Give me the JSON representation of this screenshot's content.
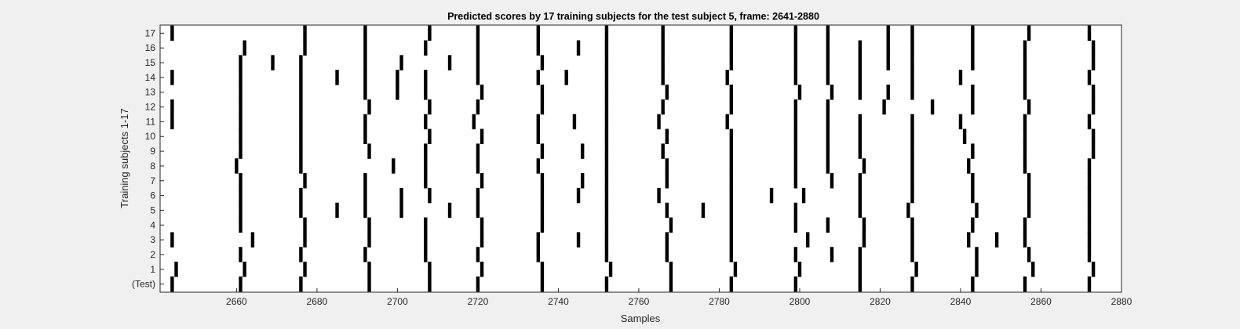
{
  "chart_data": {
    "type": "raster",
    "title": "Predicted scores by 17 training subjects for the test subject 5, frame: 2641-2880",
    "xlabel": "Samples",
    "ylabel": "Training subjects 1-17",
    "xlim": [
      2641,
      2880
    ],
    "xticks": [
      2660,
      2680,
      2700,
      2720,
      2740,
      2760,
      2780,
      2800,
      2820,
      2840,
      2860,
      2880
    ],
    "yticklabels": [
      "(Test)",
      "1",
      "2",
      "3",
      "4",
      "5",
      "6",
      "7",
      "8",
      "9",
      "10",
      "11",
      "12",
      "13",
      "14",
      "15",
      "16",
      "17"
    ],
    "grid": false,
    "colors": {
      "spike": "#000000",
      "background": "#ffffff",
      "figure": "#f0f0f0"
    },
    "series": [
      {
        "name": "(Test)",
        "x": [
          2644,
          2661,
          2676,
          2693,
          2708,
          2720,
          2736,
          2752,
          2768,
          2783,
          2799,
          2815,
          2828,
          2843,
          2856,
          2872
        ]
      },
      {
        "name": "1",
        "x": [
          2645,
          2662,
          2677,
          2693,
          2708,
          2721,
          2736,
          2753,
          2768,
          2784,
          2800,
          2815,
          2829,
          2844,
          2858,
          2873
        ]
      },
      {
        "name": "2",
        "x": [
          2661,
          2676,
          2692,
          2707,
          2720,
          2735,
          2752,
          2767,
          2783,
          2799,
          2808,
          2815,
          2828,
          2844,
          2857,
          2872
        ]
      },
      {
        "name": "3",
        "x": [
          2644,
          2664,
          2677,
          2693,
          2707,
          2721,
          2735,
          2745,
          2752,
          2767,
          2783,
          2802,
          2816,
          2828,
          2842,
          2849,
          2856,
          2872
        ]
      },
      {
        "name": "4",
        "x": [
          2661,
          2677,
          2693,
          2707,
          2721,
          2736,
          2752,
          2768,
          2783,
          2799,
          2807,
          2816,
          2828,
          2843,
          2856,
          2872
        ]
      },
      {
        "name": "5",
        "x": [
          2661,
          2676,
          2685,
          2692,
          2701,
          2713,
          2720,
          2736,
          2752,
          2767,
          2776,
          2783,
          2799,
          2815,
          2827,
          2844,
          2857,
          2872
        ]
      },
      {
        "name": "6",
        "x": [
          2661,
          2676,
          2692,
          2701,
          2708,
          2720,
          2736,
          2745,
          2752,
          2765,
          2783,
          2793,
          2801,
          2815,
          2828,
          2843,
          2857,
          2872
        ]
      },
      {
        "name": "7",
        "x": [
          2661,
          2677,
          2692,
          2707,
          2721,
          2736,
          2746,
          2752,
          2767,
          2783,
          2799,
          2808,
          2815,
          2828,
          2843,
          2857,
          2872
        ]
      },
      {
        "name": "8",
        "x": [
          2660,
          2676,
          2699,
          2707,
          2720,
          2735,
          2752,
          2767,
          2783,
          2799,
          2807,
          2816,
          2828,
          2842,
          2856,
          2872
        ]
      },
      {
        "name": "9",
        "x": [
          2661,
          2676,
          2693,
          2707,
          2720,
          2736,
          2746,
          2752,
          2766,
          2783,
          2799,
          2807,
          2815,
          2828,
          2843,
          2856,
          2873
        ]
      },
      {
        "name": "10",
        "x": [
          2661,
          2676,
          2692,
          2708,
          2721,
          2735,
          2752,
          2767,
          2783,
          2799,
          2807,
          2815,
          2828,
          2841,
          2856,
          2873
        ]
      },
      {
        "name": "11",
        "x": [
          2644,
          2661,
          2676,
          2692,
          2707,
          2719,
          2735,
          2744,
          2752,
          2765,
          2782,
          2799,
          2807,
          2815,
          2828,
          2840,
          2856,
          2872
        ]
      },
      {
        "name": "12",
        "x": [
          2644,
          2661,
          2676,
          2693,
          2708,
          2720,
          2736,
          2752,
          2766,
          2783,
          2799,
          2807,
          2821,
          2833,
          2843,
          2857,
          2873
        ]
      },
      {
        "name": "13",
        "x": [
          2661,
          2676,
          2692,
          2700,
          2707,
          2721,
          2736,
          2752,
          2767,
          2783,
          2800,
          2808,
          2815,
          2822,
          2828,
          2843,
          2856,
          2873
        ]
      },
      {
        "name": "14",
        "x": [
          2644,
          2661,
          2676,
          2685,
          2692,
          2700,
          2707,
          2720,
          2735,
          2742,
          2752,
          2766,
          2782,
          2799,
          2807,
          2815,
          2828,
          2840,
          2856,
          2872
        ]
      },
      {
        "name": "15",
        "x": [
          2661,
          2669,
          2676,
          2692,
          2701,
          2713,
          2720,
          2736,
          2752,
          2766,
          2783,
          2799,
          2807,
          2815,
          2822,
          2828,
          2843,
          2856,
          2873
        ]
      },
      {
        "name": "16",
        "x": [
          2662,
          2677,
          2692,
          2707,
          2720,
          2735,
          2745,
          2752,
          2766,
          2783,
          2799,
          2807,
          2815,
          2822,
          2828,
          2843,
          2856,
          2873
        ]
      },
      {
        "name": "17",
        "x": [
          2644,
          2677,
          2692,
          2708,
          2720,
          2735,
          2752,
          2766,
          2783,
          2799,
          2807,
          2822,
          2828,
          2843,
          2857,
          2872
        ]
      }
    ]
  }
}
